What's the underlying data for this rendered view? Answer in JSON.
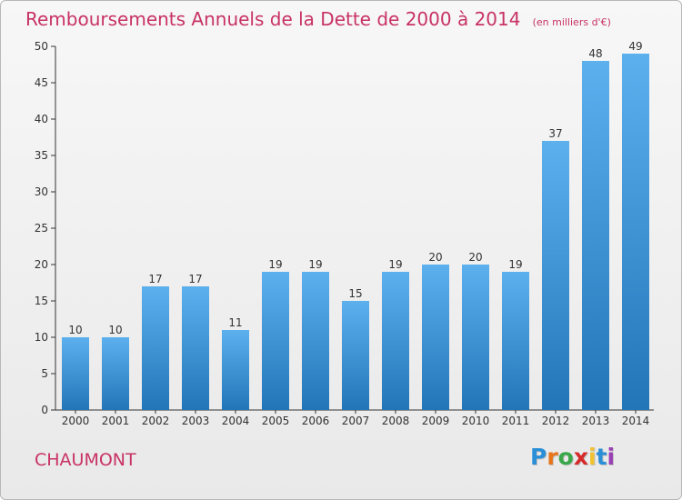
{
  "chart_data": {
    "type": "bar",
    "title": "Remboursements Annuels de la Dette de 2000 à 2014",
    "subtitle": "(en milliers d'€)",
    "categories": [
      "2000",
      "2001",
      "2002",
      "2003",
      "2004",
      "2005",
      "2006",
      "2007",
      "2008",
      "2009",
      "2010",
      "2011",
      "2012",
      "2013",
      "2014"
    ],
    "values": [
      10,
      10,
      17,
      17,
      11,
      19,
      19,
      15,
      19,
      20,
      20,
      19,
      37,
      48,
      49
    ],
    "ylim": [
      0,
      50
    ],
    "yticks": [
      0,
      5,
      10,
      15,
      20,
      25,
      30,
      35,
      40,
      45,
      50
    ],
    "xlabel": "",
    "ylabel": "",
    "grid": false,
    "data_labels": true
  },
  "commune": "CHAUMONT",
  "brand": {
    "name": "Proxiti",
    "letters": [
      "P",
      "r",
      "o",
      "x",
      "i",
      "t",
      "i"
    ],
    "letter_colors": [
      "#2a8fd6",
      "#e8751a",
      "#3aa84a",
      "#d62a2a",
      "#f2c230",
      "#2a8fd6",
      "#9b3fb5"
    ]
  },
  "colors": {
    "bar_top": "#5db0ee",
    "bar_bottom": "#2276b8",
    "accent": "#c83264",
    "axis": "#333333"
  }
}
